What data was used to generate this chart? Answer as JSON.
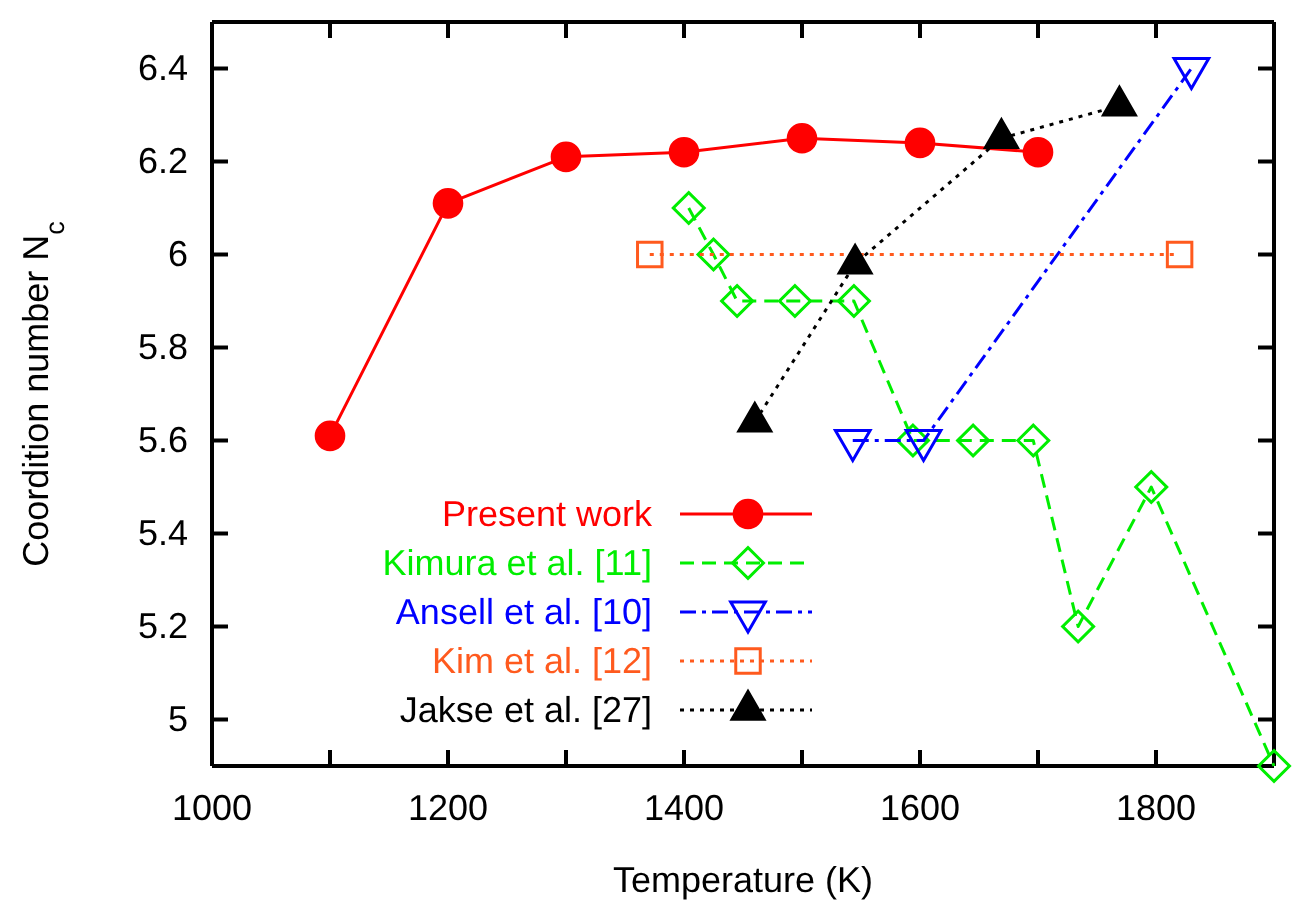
{
  "chart_data": {
    "type": "line",
    "xlabel": "Temperature (K)",
    "ylabel": "Coordition number N$_{c}$",
    "xlim": [
      1000,
      1900
    ],
    "ylim": [
      4.9,
      6.5
    ],
    "xticks": [
      1000,
      {
        "value": 1100,
        "label": null
      },
      1200,
      {
        "value": 1300,
        "label": null
      },
      1400,
      {
        "value": 1500,
        "label": null
      },
      1600,
      {
        "value": 1700,
        "label": null
      },
      1800
    ],
    "yticks": [
      5,
      5.2,
      5.4,
      5.6,
      5.8,
      6,
      6.2,
      6.4
    ],
    "grid": false,
    "legend": "bottom left",
    "series": [
      {
        "name": "Present work",
        "color": "#ff0000",
        "marker": "circle",
        "line_style": "solid",
        "x": [
          1100,
          1200,
          1300,
          1400,
          1500,
          1600,
          1700
        ],
        "values": [
          5.61,
          6.11,
          6.21,
          6.22,
          6.25,
          6.24,
          6.22
        ]
      },
      {
        "name": "Kimura et al. [11]",
        "color": "#00ee00",
        "marker": "diamond",
        "line_style": "dashed",
        "x": [
          1404,
          1425,
          1445,
          1494,
          1544,
          1594,
          1645,
          1696,
          1734,
          1796,
          1900
        ],
        "values": [
          6.1,
          6.0,
          5.9,
          5.9,
          5.9,
          5.6,
          5.6,
          5.6,
          5.2,
          5.5,
          4.9
        ]
      },
      {
        "name": "Ansell et al. [10]",
        "color": "#0000ff",
        "marker": "triangle_down",
        "line_style": "dashdot",
        "x": [
          1543,
          1603,
          1830
        ],
        "values": [
          5.6,
          5.6,
          6.4
        ]
      },
      {
        "name": "Kim et al. [12]",
        "color": "#ff5a1e",
        "marker": "square",
        "line_style": "dotted",
        "x": [
          1371,
          1820
        ],
        "values": [
          6.0,
          6.0
        ]
      },
      {
        "name": "Jakse et al. [27]",
        "color": "#000000",
        "marker": "triangle",
        "line_style": "dotted",
        "x": [
          1460,
          1545,
          1669,
          1769
        ],
        "values": [
          5.64,
          5.98,
          6.25,
          6.32
        ]
      }
    ]
  }
}
